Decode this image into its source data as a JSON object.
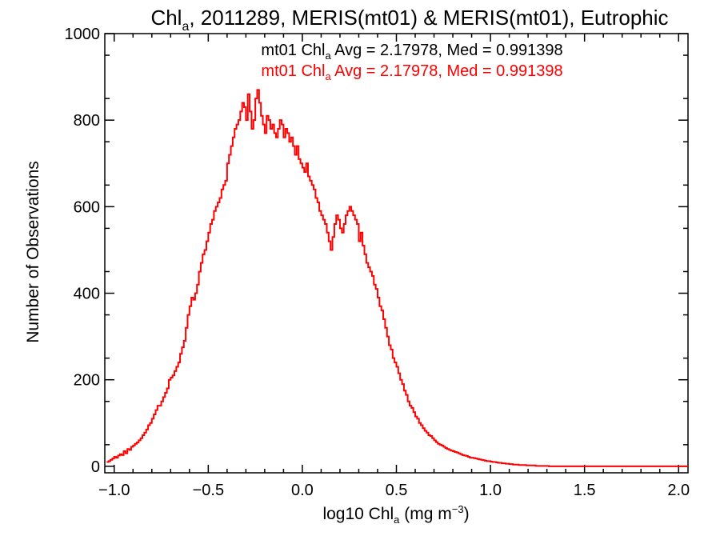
{
  "chart_data": {
    "type": "histogram",
    "title": {
      "prefix": "Chl",
      "subscript": "a",
      "suffix": ", 2011289, MERIS(mt01) & MERIS(mt01), Eutrophic"
    },
    "xlabel": {
      "prefix": "log10 Chl",
      "subscript": "a",
      "units_prefix": " (mg m",
      "superscript": "−3",
      "units_suffix": ")"
    },
    "ylabel": "Number of Observations",
    "xlim": [
      -1.05,
      2.05
    ],
    "ylim": [
      -15,
      1000
    ],
    "xticks": [
      -1.0,
      -0.5,
      0.0,
      0.5,
      1.0,
      1.5,
      2.0
    ],
    "xtick_labels": [
      "−1.0",
      "−0.5",
      "0.0",
      "0.5",
      "1.0",
      "1.5",
      "2.0"
    ],
    "yticks": [
      0,
      200,
      400,
      600,
      800,
      1000
    ],
    "ytick_labels": [
      "0",
      "200",
      "400",
      "600",
      "800",
      "1000"
    ],
    "grid": false,
    "annotations": [
      {
        "prefix": "mt01 Chl",
        "subscript": "a",
        "suffix": " Avg = 2.17978, Med = 0.991398",
        "color": "#000000"
      },
      {
        "prefix": "mt01 Chl",
        "subscript": "a",
        "suffix": " Avg = 2.17978, Med = 0.991398",
        "color": "#ff0000"
      }
    ],
    "series": [
      {
        "color": "#ff0000",
        "bin_width": 0.01,
        "bin_start": -1.04,
        "values": [
          10,
          12,
          15,
          18,
          22,
          20,
          25,
          28,
          26,
          35,
          30,
          40,
          38,
          45,
          48,
          52,
          55,
          60,
          65,
          72,
          78,
          85,
          95,
          100,
          110,
          120,
          130,
          140,
          140,
          150,
          160,
          170,
          180,
          200,
          205,
          210,
          220,
          230,
          240,
          260,
          275,
          290,
          320,
          350,
          370,
          390,
          385,
          400,
          420,
          450,
          470,
          490,
          500,
          520,
          540,
          560,
          570,
          590,
          600,
          610,
          620,
          640,
          650,
          660,
          700,
          720,
          740,
          760,
          780,
          790,
          800,
          820,
          840,
          830,
          800,
          860,
          820,
          780,
          800,
          850,
          870,
          840,
          810,
          790,
          770,
          810,
          800,
          780,
          790,
          770,
          760,
          780,
          800,
          790,
          760,
          780,
          770,
          750,
          760,
          740,
          720,
          740,
          710,
          700,
          690,
          680,
          700,
          670,
          660,
          650,
          640,
          620,
          610,
          590,
          580,
          570,
          560,
          540,
          520,
          500,
          530,
          560,
          580,
          570,
          550,
          540,
          560,
          580,
          590,
          600,
          590,
          580,
          570,
          560,
          520,
          540,
          510,
          490,
          470,
          460,
          450,
          440,
          420,
          410,
          390,
          370,
          360,
          340,
          320,
          300,
          280,
          270,
          250,
          240,
          230,
          215,
          200,
          190,
          175,
          165,
          150,
          140,
          135,
          125,
          115,
          110,
          100,
          95,
          88,
          82,
          78,
          72,
          70,
          65,
          60,
          56,
          52,
          50,
          48,
          45,
          42,
          40,
          38,
          36,
          35,
          33,
          32,
          30,
          28,
          26,
          25,
          24,
          22,
          20,
          20,
          19,
          18,
          17,
          16,
          15,
          14,
          13,
          12,
          12,
          11,
          10,
          10,
          9,
          8,
          8,
          7,
          7,
          6,
          6,
          5,
          5,
          4,
          4,
          4,
          3,
          3,
          3,
          3,
          2,
          2,
          2,
          2,
          2,
          1,
          1,
          1,
          1,
          1,
          1,
          1,
          0,
          0,
          0,
          0,
          0,
          0,
          0,
          0,
          0,
          0,
          0,
          0,
          0,
          0,
          0,
          0,
          0,
          0,
          0,
          0,
          0,
          0,
          0,
          0,
          0,
          0,
          0,
          0,
          0,
          0,
          0,
          0,
          0,
          0,
          0,
          0,
          0,
          0,
          0,
          0,
          0,
          0,
          0,
          0,
          0,
          0,
          0,
          0,
          0,
          0,
          0,
          0,
          0,
          0,
          0,
          0,
          0,
          0,
          0,
          0,
          0,
          0,
          0,
          0,
          0,
          0,
          0,
          0,
          0,
          0,
          0,
          0,
          0,
          0,
          0
        ]
      }
    ]
  }
}
